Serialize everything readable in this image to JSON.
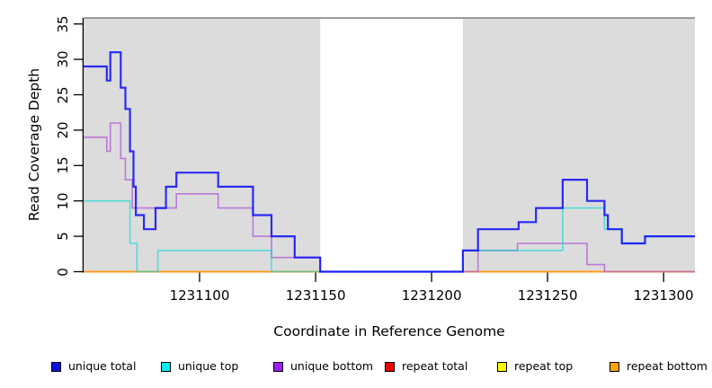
{
  "axes": {
    "x_label": "Coordinate in Reference Genome",
    "y_label": "Read Coverage Depth"
  },
  "legend": {
    "items": [
      {
        "label": "unique total",
        "color": "#1111DD"
      },
      {
        "label": "unique top",
        "color": "#00EEEE"
      },
      {
        "label": "unique bottom",
        "color": "#A020F0"
      },
      {
        "label": "repeat total",
        "color": "#EE0000"
      },
      {
        "label": "repeat top",
        "color": "#FFFF00"
      },
      {
        "label": "repeat bottom",
        "color": "#FFA500"
      }
    ]
  },
  "chart_data": {
    "type": "line",
    "subtype": "step-coverage",
    "title": "",
    "xlabel": "Coordinate in Reference Genome",
    "ylabel": "Read Coverage Depth",
    "x_domain": [
      1231050,
      1231313.5
    ],
    "y_domain": [
      0,
      36
    ],
    "x_ticks": [
      1231100,
      1231150,
      1231200,
      1231250,
      1231300
    ],
    "y_ticks": [
      0,
      5,
      10,
      15,
      20,
      25,
      30,
      35
    ],
    "grid": false,
    "legend_position": "bottom",
    "panel_color": "#DCDCDC",
    "border_color": "#808080",
    "masked_region": {
      "start": 1231152,
      "end": 1231213.5
    },
    "series": [
      {
        "name": "repeat total",
        "line_color": "#EE0000",
        "line_width": 1.4,
        "opacity": 1,
        "x_end": 1231313.5,
        "steps": [
          [
            1231050,
            0
          ]
        ]
      },
      {
        "name": "repeat top",
        "line_color": "#FFFF00",
        "line_width": 1.4,
        "opacity": 1,
        "x_end": 1231313.5,
        "steps": [
          [
            1231050,
            0
          ]
        ]
      },
      {
        "name": "repeat bottom",
        "line_color": "#FF9D1F",
        "line_width": 1.9,
        "opacity": 1,
        "x_end": 1231313.5,
        "steps": [
          [
            1231050,
            0
          ]
        ]
      },
      {
        "name": "unique bottom",
        "line_color": "#B35FD6",
        "line_width": 1.6,
        "opacity": 0.8,
        "x_end": 1231313.5,
        "steps": [
          [
            1231050,
            19
          ],
          [
            1231060,
            17
          ],
          [
            1231061.5,
            21
          ],
          [
            1231066,
            16
          ],
          [
            1231068,
            13
          ],
          [
            1231071,
            9
          ],
          [
            1231090,
            11
          ],
          [
            1231108,
            9
          ],
          [
            1231123,
            5
          ],
          [
            1231131,
            2
          ],
          [
            1231152,
            0
          ],
          [
            1231220,
            3
          ],
          [
            1231237,
            4
          ],
          [
            1231267,
            1
          ],
          [
            1231274.5,
            0
          ]
        ]
      },
      {
        "name": "unique top",
        "line_color": "#00D8D8",
        "line_width": 1.6,
        "opacity": 0.62,
        "x_end": 1231313.5,
        "steps": [
          [
            1231050,
            10
          ],
          [
            1231070,
            4
          ],
          [
            1231073,
            0
          ],
          [
            1231082,
            3
          ],
          [
            1231131,
            0
          ],
          [
            1231213.5,
            3
          ],
          [
            1231256.5,
            9
          ],
          [
            1231274.5,
            6
          ],
          [
            1231282,
            4
          ],
          [
            1231292,
            5
          ]
        ]
      },
      {
        "name": "unique total",
        "line_color": "#0B0BFA",
        "line_width": 2.2,
        "opacity": 0.85,
        "x_end": 1231313.5,
        "steps": [
          [
            1231050,
            29
          ],
          [
            1231060,
            27
          ],
          [
            1231061.5,
            31
          ],
          [
            1231066,
            26
          ],
          [
            1231068,
            23
          ],
          [
            1231070,
            17
          ],
          [
            1231071.5,
            12
          ],
          [
            1231072.5,
            8
          ],
          [
            1231076,
            6
          ],
          [
            1231081,
            9
          ],
          [
            1231085.5,
            12
          ],
          [
            1231090,
            14
          ],
          [
            1231108,
            12
          ],
          [
            1231123,
            8
          ],
          [
            1231131,
            5
          ],
          [
            1231141,
            2
          ],
          [
            1231152,
            0
          ],
          [
            1231213.5,
            3
          ],
          [
            1231220,
            6
          ],
          [
            1231237.5,
            7
          ],
          [
            1231245,
            9
          ],
          [
            1231256.5,
            13
          ],
          [
            1231267,
            10
          ],
          [
            1231274.5,
            8
          ],
          [
            1231276,
            6
          ],
          [
            1231282,
            4
          ],
          [
            1231292,
            5
          ]
        ]
      }
    ]
  }
}
